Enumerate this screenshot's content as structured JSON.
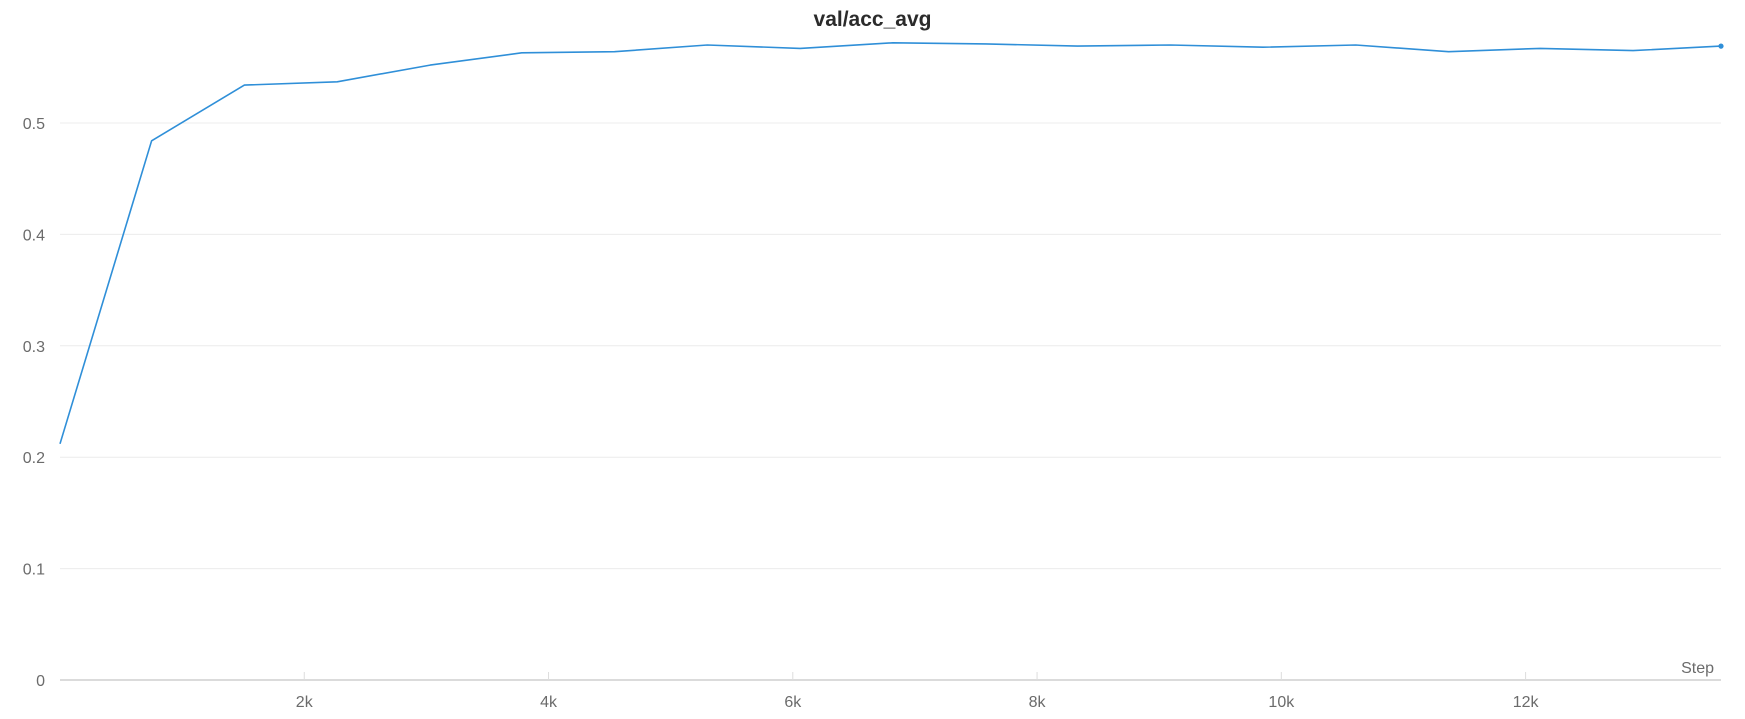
{
  "chart_data": {
    "type": "line",
    "title": "val/acc_avg",
    "xlabel": "Step",
    "ylabel": "",
    "xlim": [
      0,
      13600
    ],
    "ylim": [
      0,
      0.6
    ],
    "grid": true,
    "legend": "none",
    "x_ticks": [
      2000,
      4000,
      6000,
      8000,
      10000,
      12000
    ],
    "x_tick_labels": [
      "2k",
      "4k",
      "6k",
      "8k",
      "10k",
      "12k"
    ],
    "y_ticks": [
      0,
      0.1,
      0.2,
      0.3,
      0.4,
      0.5
    ],
    "y_tick_labels": [
      "0",
      "0.1",
      "0.2",
      "0.3",
      "0.4",
      "0.5"
    ],
    "series": [
      {
        "color": "#2f8fd8",
        "x": [
          0,
          750,
          1510,
          2270,
          3030,
          3780,
          4540,
          5300,
          6060,
          6820,
          7580,
          8330,
          9090,
          9850,
          10610,
          11370,
          12120,
          12880,
          13600
        ],
        "y": [
          0.212,
          0.484,
          0.534,
          0.537,
          0.552,
          0.563,
          0.564,
          0.57,
          0.567,
          0.572,
          0.571,
          0.569,
          0.57,
          0.568,
          0.57,
          0.564,
          0.567,
          0.565,
          0.569
        ]
      }
    ]
  }
}
